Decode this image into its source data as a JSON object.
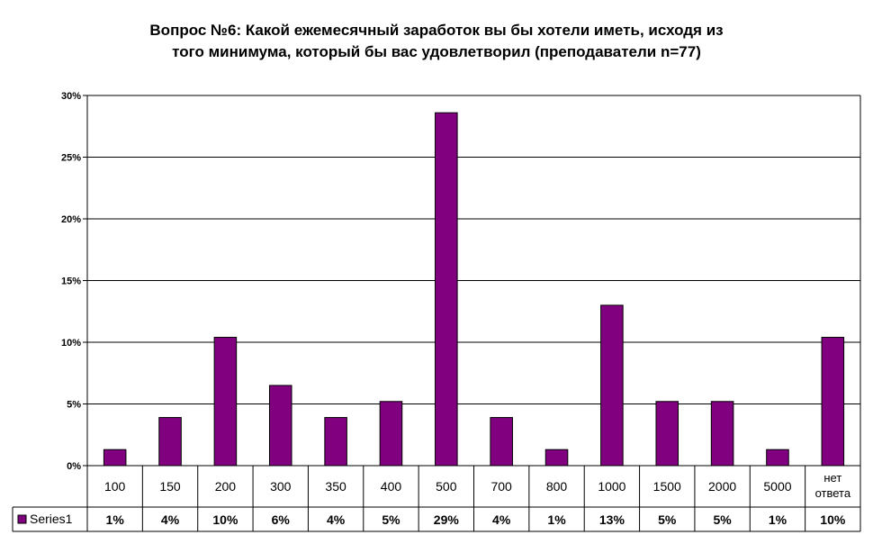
{
  "chart_data": {
    "type": "bar",
    "title_line1": "Вопрос №6: Какой ежемесячный заработок вы бы хотели иметь, исходя из",
    "title_line2": "того минимума, который бы вас удовлетворил (преподаватели n=77)",
    "categories": [
      "100",
      "150",
      "200",
      "300",
      "350",
      "400",
      "500",
      "700",
      "800",
      "1000",
      "1500",
      "2000",
      "5000",
      "нет ответа"
    ],
    "series": [
      {
        "name": "Series1",
        "color": "#800080",
        "values": [
          1.3,
          3.9,
          10.4,
          6.5,
          3.9,
          5.2,
          28.6,
          3.9,
          1.3,
          13.0,
          5.2,
          5.2,
          1.3,
          10.4
        ],
        "labels": [
          "1%",
          "4%",
          "10%",
          "6%",
          "4%",
          "5%",
          "29%",
          "4%",
          "1%",
          "13%",
          "5%",
          "5%",
          "1%",
          "10%"
        ]
      }
    ],
    "yticks": [
      "0%",
      "5%",
      "10%",
      "15%",
      "20%",
      "25%",
      "30%"
    ],
    "ylim": [
      0,
      30
    ],
    "grid": true,
    "legend": "data-table-left"
  }
}
